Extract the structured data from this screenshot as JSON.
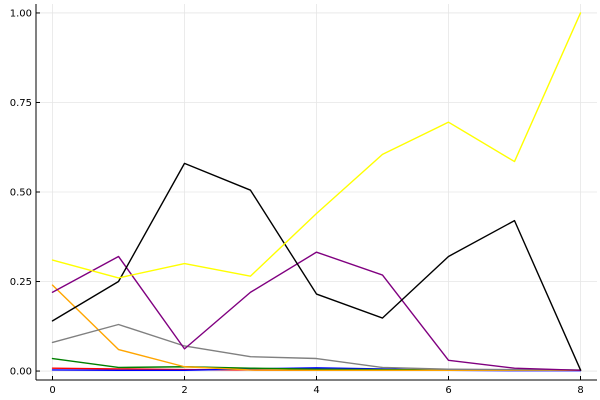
{
  "chart_data": {
    "type": "line",
    "title": "",
    "xlabel": "",
    "ylabel": "",
    "x": [
      0,
      1,
      2,
      3,
      4,
      5,
      6,
      7,
      8
    ],
    "xlim": [
      -0.25,
      8.25
    ],
    "ylim": [
      -0.025,
      1.025
    ],
    "x_ticks": [
      0,
      2,
      4,
      6,
      8
    ],
    "x_tick_labels": [
      "0",
      "2",
      "4",
      "6",
      "8"
    ],
    "y_ticks": [
      0,
      0.25,
      0.5,
      0.75,
      1.0
    ],
    "y_tick_labels": [
      "0.00",
      "0.25",
      "0.50",
      "0.75",
      "1.00"
    ],
    "grid": true,
    "legend": "none",
    "series": [
      {
        "color": "#ffff00",
        "values": [
          0.31,
          0.26,
          0.3,
          0.265,
          0.44,
          0.605,
          0.695,
          0.585,
          1.0
        ]
      },
      {
        "color": "#000000",
        "values": [
          0.14,
          0.25,
          0.58,
          0.505,
          0.215,
          0.148,
          0.32,
          0.42,
          0.003
        ]
      },
      {
        "color": "#800080",
        "values": [
          0.22,
          0.32,
          0.062,
          0.22,
          0.332,
          0.268,
          0.03,
          0.008,
          0.002
        ]
      },
      {
        "color": "#808080",
        "values": [
          0.08,
          0.13,
          0.07,
          0.04,
          0.035,
          0.01,
          0.005,
          0.004,
          0.003
        ]
      },
      {
        "color": "#ffa500",
        "values": [
          0.24,
          0.06,
          0.012,
          0.003,
          0.002,
          0.002,
          0.002,
          0.002,
          0.002
        ]
      },
      {
        "color": "#008000",
        "values": [
          0.035,
          0.01,
          0.012,
          0.008,
          0.005,
          0.004,
          0.003,
          0.002,
          0.002
        ]
      },
      {
        "color": "#0000ff",
        "values": [
          0.003,
          0.002,
          0.002,
          0.006,
          0.009,
          0.006,
          0.002,
          0.001,
          0.001
        ]
      },
      {
        "color": "#ff0000",
        "values": [
          0.008,
          0.006,
          0.004,
          0.003,
          0.002,
          0.002,
          0.002,
          0.002,
          0.002
        ]
      }
    ]
  }
}
